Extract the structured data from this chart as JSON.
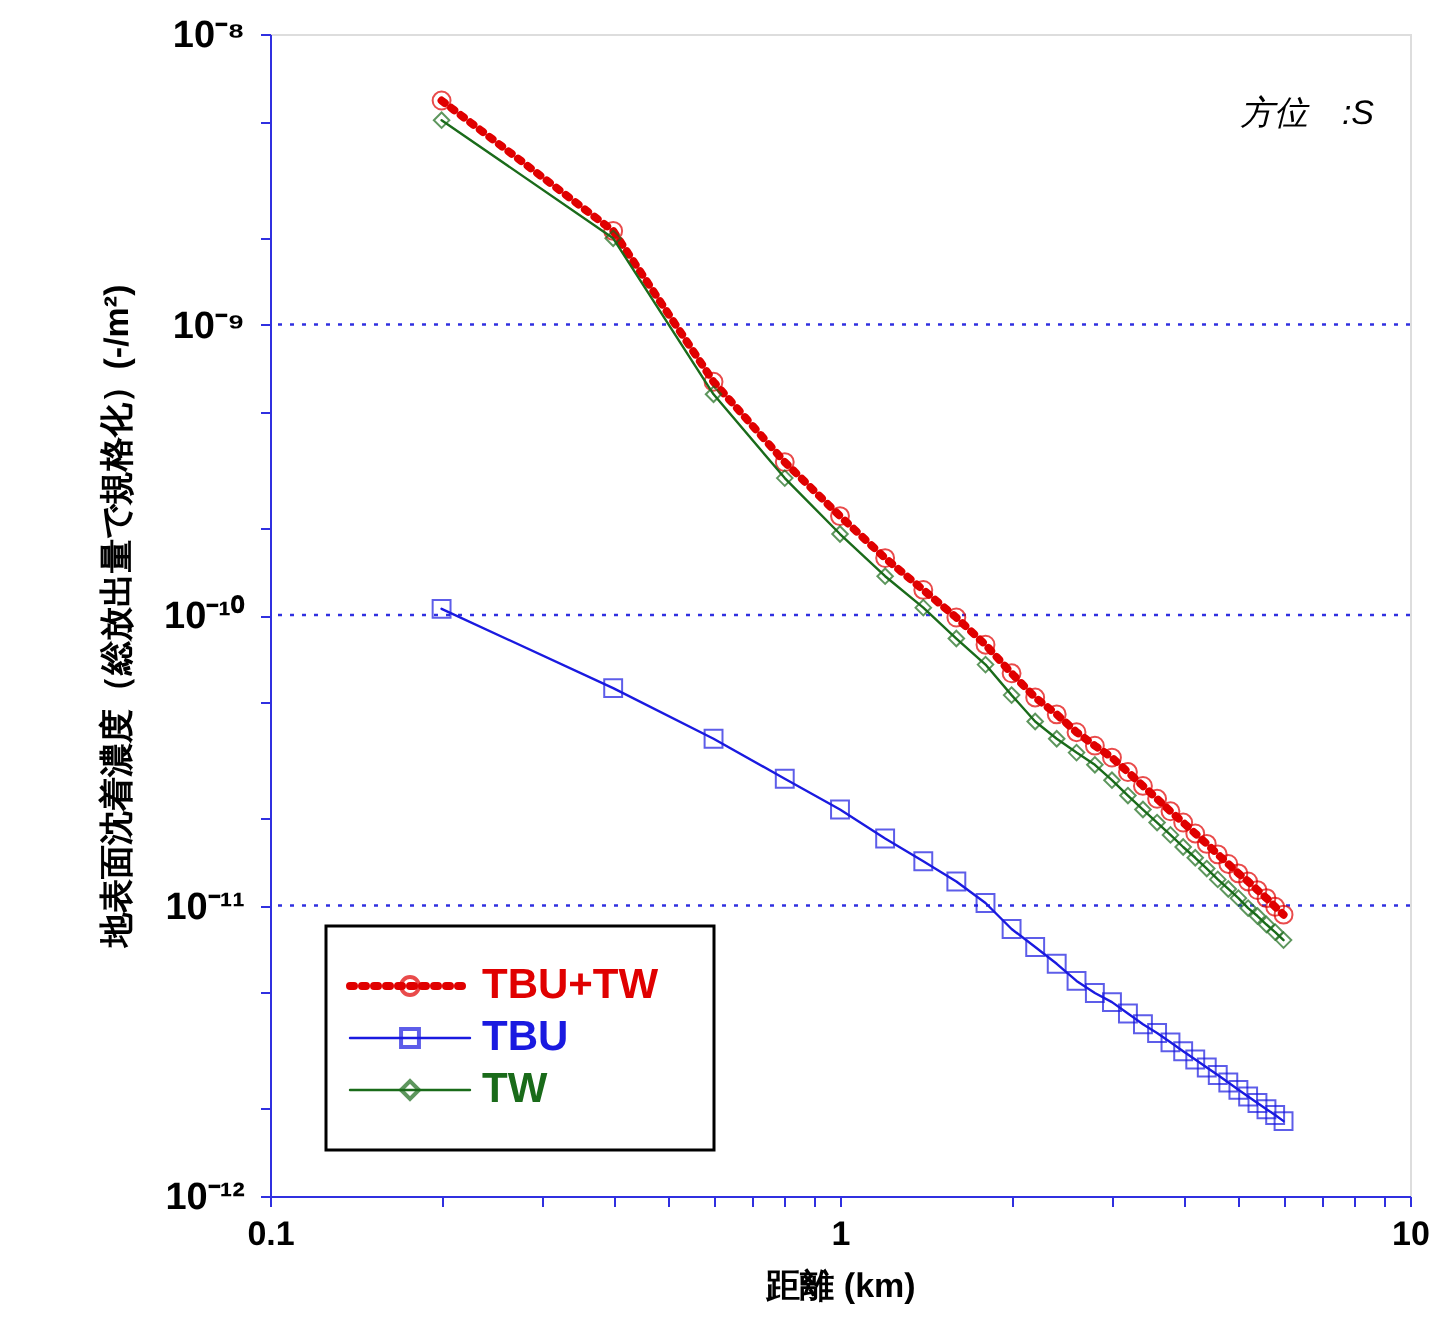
{
  "chart_data": {
    "type": "line",
    "xlabel": "距離 (km)",
    "ylabel": "地表面沈着濃度（総放出量で規格化）(-/m²)",
    "annotations": [
      "方位　:S"
    ],
    "log": "xy",
    "grid": "y",
    "legend": "bottom left",
    "xlim": [
      0.1,
      10
    ],
    "xticks": [
      0.1,
      {
        "value": 0.2,
        "label": null
      },
      {
        "value": 0.3,
        "label": null
      },
      {
        "value": 0.4,
        "label": null
      },
      {
        "value": 0.5,
        "label": null
      },
      {
        "value": 0.6,
        "label": null
      },
      {
        "value": 0.7,
        "label": null
      },
      {
        "value": 0.8,
        "label": null
      },
      {
        "value": 0.9,
        "label": null
      },
      1,
      {
        "value": 2,
        "label": null
      },
      {
        "value": 3,
        "label": null
      },
      {
        "value": 4,
        "label": null
      },
      {
        "value": 5,
        "label": null
      },
      {
        "value": 6,
        "label": null
      },
      {
        "value": 7,
        "label": null
      },
      {
        "value": 8,
        "label": null
      },
      {
        "value": 9,
        "label": null
      },
      10
    ],
    "ylim": [
      1e-12,
      1e-08
    ],
    "yticks": [
      {
        "value": 1e-12,
        "label": "10⁻¹²"
      },
      {
        "value": 2e-12,
        "label": null
      },
      {
        "value": 5e-12,
        "label": null
      },
      {
        "value": 1e-11,
        "label": "10⁻¹¹"
      },
      {
        "value": 2e-11,
        "label": null
      },
      {
        "value": 5e-11,
        "label": null
      },
      {
        "value": 1e-10,
        "label": "10⁻¹⁰"
      },
      {
        "value": 2e-10,
        "label": null
      },
      {
        "value": 5e-10,
        "label": null
      },
      {
        "value": 1e-09,
        "label": "10⁻⁹"
      },
      {
        "value": 2e-09,
        "label": null
      },
      {
        "value": 5e-09,
        "label": null
      },
      {
        "value": 1e-08,
        "label": "10⁻⁸"
      }
    ],
    "x": [
      0.2,
      0.4,
      0.6,
      0.8,
      1.0,
      1.2,
      1.4,
      1.6,
      1.8,
      2.0,
      2.2,
      2.4,
      2.6,
      2.8,
      3.0,
      3.2,
      3.4,
      3.6,
      3.8,
      4.0,
      4.2,
      4.4,
      4.6,
      4.8,
      5.0,
      5.2,
      5.4,
      5.6,
      5.8,
      6.0
    ],
    "series": [
      {
        "name": "TBU+TW",
        "color": "#e00000",
        "marker": "circle",
        "line_style": "dotted",
        "values": [
          5.9e-09,
          2.1e-09,
          6.35e-10,
          3.36e-10,
          2.19e-10,
          1.57e-10,
          1.22e-10,
          9.8e-11,
          7.9e-11,
          6.3e-11,
          5.2e-11,
          4.55e-11,
          3.95e-11,
          3.55e-11,
          3.23e-11,
          2.88e-11,
          2.58e-11,
          2.33e-11,
          2.11e-11,
          1.93e-11,
          1.77e-11,
          1.63e-11,
          1.5e-11,
          1.39e-11,
          1.29e-11,
          1.21e-11,
          1.13e-11,
          1.06e-11,
          9.9e-12,
          9.3e-12
        ]
      },
      {
        "name": "TBU",
        "color": "#1a1ae0",
        "marker": "square",
        "line_style": "solid",
        "values": [
          1.05e-10,
          5.6e-11,
          3.75e-11,
          2.73e-11,
          2.14e-11,
          1.7e-11,
          1.42e-11,
          1.21e-11,
          1.02e-11,
          8.3e-12,
          7.2e-12,
          6.3e-12,
          5.5e-12,
          5e-12,
          4.65e-12,
          4.25e-12,
          3.9e-12,
          3.64e-12,
          3.38e-12,
          3.15e-12,
          2.95e-12,
          2.77e-12,
          2.61e-12,
          2.46e-12,
          2.32e-12,
          2.2e-12,
          2.09e-12,
          1.99e-12,
          1.9e-12,
          1.81e-12
        ]
      },
      {
        "name": "TW",
        "color": "#1a6b1a",
        "marker": "diamond",
        "line_style": "solid",
        "values": [
          5.05e-09,
          1.98e-09,
          5.75e-10,
          2.96e-10,
          1.9e-10,
          1.36e-10,
          1.06e-10,
          8.3e-11,
          6.75e-11,
          5.3e-11,
          4.3e-11,
          3.75e-11,
          3.36e-11,
          3.05e-11,
          2.7e-11,
          2.39e-11,
          2.14e-11,
          1.93e-11,
          1.75e-11,
          1.59e-11,
          1.46e-11,
          1.34e-11,
          1.23e-11,
          1.14e-11,
          1.06e-11,
          9.8e-12,
          9.2e-12,
          8.6e-12,
          8.1e-12,
          7.6e-12
        ]
      }
    ]
  }
}
